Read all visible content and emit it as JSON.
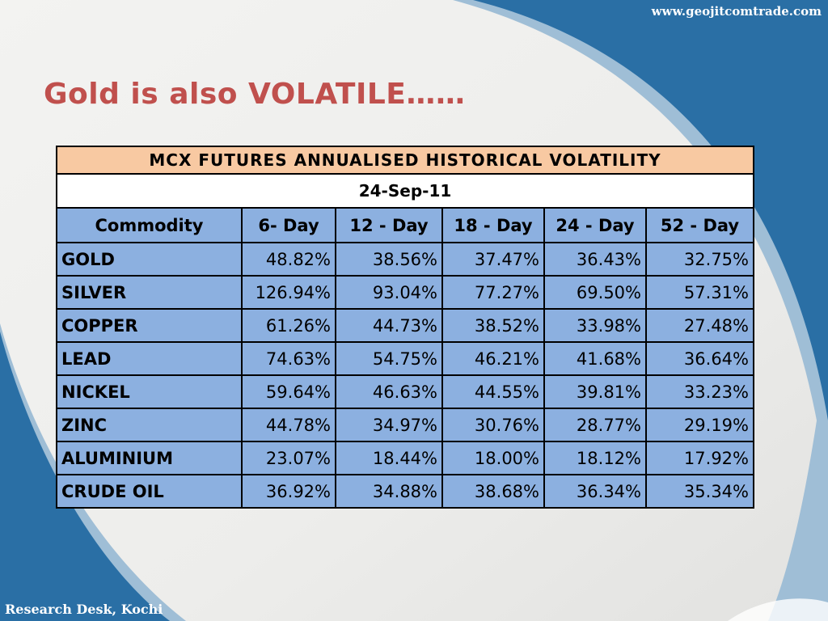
{
  "header": {
    "website": "www.geojitcomtrade.com"
  },
  "slide": {
    "title": "Gold is also VOLATILE……"
  },
  "footer": {
    "text": "Research Desk, Kochi"
  },
  "colors": {
    "background_blue": "#2a6fa5",
    "panel_light": "#f1f1ef",
    "title_red": "#c0504d",
    "table_title_bg": "#f8c9a2",
    "table_cell_bg": "#8cb0e0"
  },
  "table": {
    "title": "MCX FUTURES ANNUALISED HISTORICAL VOLATILITY",
    "date": "24-Sep-11",
    "columns": [
      "Commodity",
      "6- Day",
      "12 - Day",
      "18 - Day",
      "24 - Day",
      "52 - Day"
    ],
    "rows": [
      [
        "GOLD",
        "48.82%",
        "38.56%",
        "37.47%",
        "36.43%",
        "32.75%"
      ],
      [
        "SILVER",
        "126.94%",
        "93.04%",
        "77.27%",
        "69.50%",
        "57.31%"
      ],
      [
        "COPPER",
        "61.26%",
        "44.73%",
        "38.52%",
        "33.98%",
        "27.48%"
      ],
      [
        "LEAD",
        "74.63%",
        "54.75%",
        "46.21%",
        "41.68%",
        "36.64%"
      ],
      [
        "NICKEL",
        "59.64%",
        "46.63%",
        "44.55%",
        "39.81%",
        "33.23%"
      ],
      [
        "ZINC",
        "44.78%",
        "34.97%",
        "30.76%",
        "28.77%",
        "29.19%"
      ],
      [
        "ALUMINIUM",
        "23.07%",
        "18.44%",
        "18.00%",
        "18.12%",
        "17.92%"
      ],
      [
        "CRUDE OIL",
        "36.92%",
        "34.88%",
        "38.68%",
        "36.34%",
        "35.34%"
      ]
    ]
  }
}
